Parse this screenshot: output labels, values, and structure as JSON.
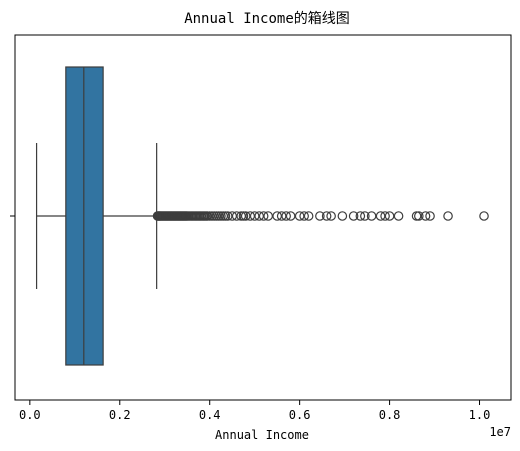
{
  "chart_data": {
    "type": "boxplot",
    "orientation": "horizontal",
    "title": "Annual Income的箱线图",
    "xlabel": "Annual Income",
    "ylabel": "",
    "x_offset_label": "1e7",
    "xlim": [
      -0.033,
      1.07
    ],
    "xticks": [
      0.0,
      0.2,
      0.4,
      0.6,
      0.8,
      1.0
    ],
    "xtick_labels": [
      "0.0",
      "0.2",
      "0.4",
      "0.6",
      "0.8",
      "1.0"
    ],
    "unit_multiplier": 10000000,
    "grid": false,
    "box_color": "#3274a1",
    "edge_color": "#3d3d3d",
    "stats": {
      "whisker_low": 0.015,
      "q1": 0.08,
      "median": 0.12,
      "q3": 0.163,
      "whisker_high": 0.282
    },
    "outliers": [
      0.284,
      0.2855,
      0.287,
      0.2885,
      0.29,
      0.292,
      0.294,
      0.296,
      0.298,
      0.3,
      0.302,
      0.304,
      0.306,
      0.308,
      0.31,
      0.312,
      0.314,
      0.316,
      0.318,
      0.32,
      0.322,
      0.324,
      0.326,
      0.328,
      0.33,
      0.332,
      0.334,
      0.336,
      0.338,
      0.34,
      0.342,
      0.344,
      0.346,
      0.348,
      0.35,
      0.353,
      0.356,
      0.359,
      0.362,
      0.365,
      0.368,
      0.371,
      0.374,
      0.377,
      0.38,
      0.383,
      0.386,
      0.389,
      0.392,
      0.395,
      0.4,
      0.405,
      0.41,
      0.415,
      0.42,
      0.425,
      0.43,
      0.435,
      0.44,
      0.45,
      0.46,
      0.47,
      0.475,
      0.48,
      0.49,
      0.5,
      0.51,
      0.52,
      0.53,
      0.55,
      0.56,
      0.57,
      0.58,
      0.6,
      0.61,
      0.62,
      0.645,
      0.66,
      0.67,
      0.695,
      0.72,
      0.735,
      0.745,
      0.76,
      0.78,
      0.79,
      0.8,
      0.82,
      0.86,
      0.865,
      0.88,
      0.89,
      0.93,
      1.01
    ]
  }
}
